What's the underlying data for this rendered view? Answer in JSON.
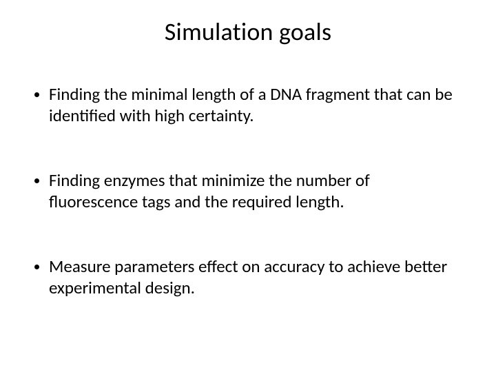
{
  "slide": {
    "title": "Simulation goals",
    "bullets": [
      "Finding the minimal length of a DNA fragment that can be identified with high certainty.",
      "Finding enzymes that minimize the number of fluorescence tags and the required length.",
      "Measure parameters effect on accuracy to achieve better experimental design."
    ],
    "title_fontsize": 36,
    "body_fontsize": 25,
    "text_color": "#000000",
    "background_color": "#ffffff"
  }
}
